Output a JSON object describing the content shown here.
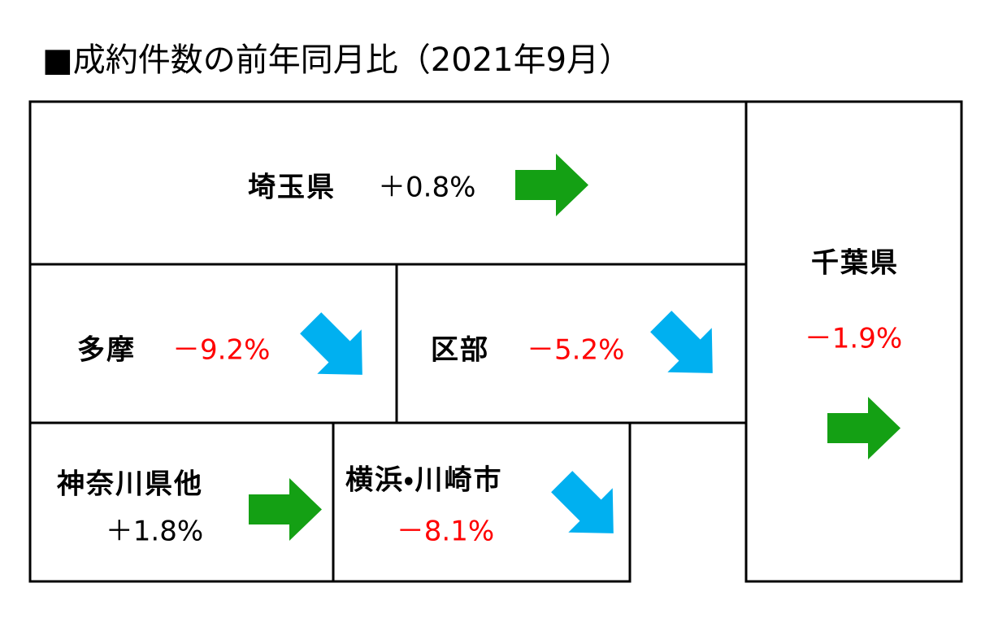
{
  "title": "■成約件数の前年同月比（2021年9月）",
  "regions": [
    {
      "name": "埼玉県",
      "change": "＋0.8%"
    },
    {
      "name": "千葉県",
      "change": "－1.9%"
    },
    {
      "name": "多摩",
      "change": "－9.2%"
    },
    {
      "name": "区部",
      "change": "－5.2%"
    },
    {
      "name": "神奈川県他",
      "change": "＋1.8%"
    },
    {
      "name": "横浜・川崎市",
      "change": "－8.1%"
    }
  ]
}
